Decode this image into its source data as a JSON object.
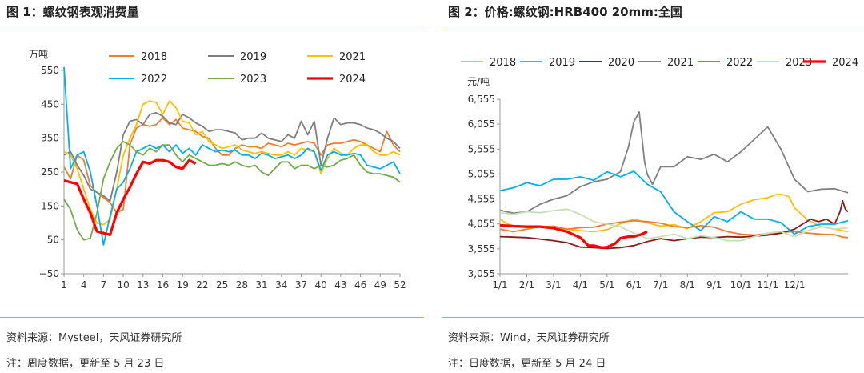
{
  "left": {
    "title": "图 1：螺纹钢表观消费量",
    "source": "资料来源：Mysteel，天风证券研究所",
    "note": "注：周度数据，更新至 5 月 23 日"
  },
  "right": {
    "title": "图 2：价格:螺纹钢:HRB400 20mm:全国",
    "source": "资料来源：Wind，天风证券研究所",
    "note": "注：日度数据，更新至 5 月 24 日"
  },
  "chart_data": [
    {
      "type": "line",
      "unit": "万吨",
      "ylim": [
        -50,
        550
      ],
      "yticks": [
        -50,
        50,
        150,
        250,
        350,
        450,
        550
      ],
      "xlim": [
        1,
        52
      ],
      "xticks": [
        1,
        4,
        7,
        10,
        13,
        16,
        19,
        22,
        25,
        28,
        31,
        34,
        37,
        40,
        43,
        46,
        49,
        52
      ],
      "grid": false,
      "legend": "top",
      "series": [
        {
          "name": "2018",
          "color": "#ed7d31",
          "x": [
            1,
            2,
            3,
            4,
            5,
            6,
            7,
            8,
            9,
            10,
            11,
            12,
            13,
            14,
            15,
            16,
            17,
            18,
            19,
            20,
            21,
            22,
            23,
            24,
            25,
            26,
            27,
            28,
            29,
            30,
            31,
            32,
            33,
            34,
            35,
            36,
            37,
            38,
            39,
            40,
            41,
            42,
            43,
            44,
            45,
            46,
            47,
            48,
            49,
            50,
            51,
            52
          ],
          "values": [
            265,
            230,
            300,
            285,
            210,
            190,
            175,
            160,
            130,
            140,
            330,
            380,
            390,
            385,
            390,
            410,
            390,
            405,
            380,
            375,
            370,
            355,
            350,
            320,
            300,
            300,
            320,
            330,
            325,
            325,
            320,
            335,
            330,
            325,
            335,
            330,
            335,
            340,
            335,
            300,
            330,
            335,
            335,
            340,
            345,
            340,
            330,
            320,
            310,
            370,
            330,
            310
          ]
        },
        {
          "name": "2019",
          "color": "#7f7f7f",
          "x": [
            1,
            2,
            3,
            4,
            5,
            6,
            7,
            8,
            9,
            10,
            11,
            12,
            13,
            14,
            15,
            16,
            17,
            18,
            19,
            20,
            21,
            22,
            23,
            24,
            25,
            26,
            27,
            28,
            29,
            30,
            31,
            32,
            33,
            34,
            35,
            36,
            37,
            38,
            39,
            40,
            41,
            42,
            43,
            44,
            45,
            46,
            47,
            48,
            49,
            50,
            51,
            52
          ],
          "values": [
            300,
            310,
            270,
            240,
            200,
            190,
            180,
            165,
            250,
            360,
            400,
            405,
            390,
            420,
            425,
            415,
            395,
            390,
            420,
            410,
            395,
            385,
            370,
            375,
            375,
            370,
            365,
            345,
            350,
            350,
            365,
            350,
            345,
            340,
            360,
            350,
            400,
            360,
            400,
            270,
            350,
            410,
            390,
            395,
            395,
            390,
            380,
            375,
            365,
            350,
            340,
            320
          ]
        },
        {
          "name": "2021",
          "color": "#ffc000",
          "x": [
            1,
            2,
            3,
            4,
            5,
            6,
            7,
            8,
            9,
            10,
            11,
            12,
            13,
            14,
            15,
            16,
            17,
            18,
            19,
            20,
            21,
            22,
            23,
            24,
            25,
            26,
            27,
            28,
            29,
            30,
            31,
            32,
            33,
            34,
            35,
            36,
            37,
            38,
            39,
            40,
            41,
            42,
            43,
            44,
            45,
            46,
            47,
            48,
            49,
            50,
            51,
            52
          ],
          "values": [
            310,
            300,
            260,
            200,
            140,
            100,
            95,
            110,
            200,
            300,
            350,
            390,
            450,
            460,
            455,
            420,
            460,
            440,
            400,
            395,
            360,
            370,
            340,
            330,
            320,
            325,
            330,
            315,
            310,
            305,
            310,
            305,
            300,
            300,
            310,
            300,
            320,
            315,
            310,
            245,
            290,
            320,
            305,
            300,
            320,
            330,
            330,
            310,
            300,
            300,
            310,
            300
          ]
        },
        {
          "name": "2022",
          "color": "#00b0f0",
          "x": [
            1,
            2,
            3,
            4,
            5,
            6,
            7,
            8,
            9,
            10,
            11,
            12,
            13,
            14,
            15,
            16,
            17,
            18,
            19,
            20,
            21,
            22,
            23,
            24,
            25,
            26,
            27,
            28,
            29,
            30,
            31,
            32,
            33,
            34,
            35,
            36,
            37,
            38,
            39,
            40,
            41,
            42,
            43,
            44,
            45,
            46,
            47,
            48,
            49,
            50,
            51,
            52
          ],
          "values": [
            560,
            260,
            300,
            310,
            250,
            150,
            35,
            120,
            200,
            220,
            260,
            310,
            320,
            330,
            320,
            330,
            310,
            330,
            305,
            320,
            300,
            330,
            320,
            310,
            315,
            310,
            315,
            300,
            300,
            290,
            305,
            300,
            290,
            295,
            300,
            290,
            300,
            320,
            310,
            255,
            300,
            310,
            300,
            300,
            305,
            300,
            270,
            265,
            260,
            270,
            280,
            245
          ]
        },
        {
          "name": "2023",
          "color": "#70ad47",
          "x": [
            1,
            2,
            3,
            4,
            5,
            6,
            7,
            8,
            9,
            10,
            11,
            12,
            13,
            14,
            15,
            16,
            17,
            18,
            19,
            20,
            21,
            22,
            23,
            24,
            25,
            26,
            27,
            28,
            29,
            30,
            31,
            32,
            33,
            34,
            35,
            36,
            37,
            38,
            39,
            40,
            41,
            42,
            43,
            44,
            45,
            46,
            47,
            48,
            49,
            50,
            51,
            52
          ],
          "values": [
            170,
            140,
            80,
            50,
            55,
            130,
            230,
            280,
            320,
            340,
            330,
            310,
            300,
            320,
            310,
            330,
            330,
            300,
            280,
            300,
            290,
            280,
            270,
            270,
            275,
            270,
            280,
            270,
            265,
            270,
            250,
            240,
            260,
            280,
            280,
            260,
            270,
            270,
            260,
            270,
            265,
            270,
            285,
            290,
            300,
            270,
            250,
            245,
            245,
            240,
            235,
            220
          ]
        },
        {
          "name": "2024",
          "color": "#ff0000",
          "x": [
            1,
            2,
            3,
            4,
            5,
            6,
            7,
            8,
            9,
            10,
            11,
            12,
            13,
            14,
            15,
            16,
            17,
            18,
            19,
            20,
            21
          ],
          "values": [
            225,
            220,
            215,
            170,
            130,
            75,
            70,
            65,
            130,
            170,
            205,
            245,
            280,
            275,
            285,
            285,
            280,
            265,
            260,
            285,
            275
          ]
        }
      ]
    },
    {
      "type": "line",
      "unit": "元/吨",
      "ylim": [
        3055,
        6555
      ],
      "yticks": [
        3055,
        3555,
        4055,
        4555,
        5055,
        5555,
        6055,
        6555
      ],
      "xticks": [
        "1/1",
        "2/1",
        "3/1",
        "4/1",
        "5/1",
        "6/1",
        "7/1",
        "8/1",
        "9/1",
        "10/1",
        "11/1",
        "12/1"
      ],
      "grid": false,
      "legend": "top",
      "series": [
        {
          "name": "2018",
          "color": "#ffc000",
          "x": [
            0,
            0.3,
            0.6,
            1,
            1.5,
            2,
            2.5,
            3,
            3.5,
            4,
            4.5,
            5,
            5.5,
            6,
            6.5,
            7,
            7.5,
            8,
            8.5,
            9,
            9.5,
            10,
            10.3,
            10.5,
            10.8,
            11,
            11.5,
            12,
            12.5,
            13
          ],
          "values": [
            4150,
            4050,
            4000,
            3980,
            4010,
            3960,
            3950,
            3920,
            3900,
            3940,
            4060,
            4150,
            4080,
            4010,
            4040,
            3960,
            4100,
            4280,
            4300,
            4450,
            4540,
            4580,
            4640,
            4650,
            4600,
            4380,
            4130,
            4000,
            3950,
            3900
          ]
        },
        {
          "name": "2019",
          "color": "#ed7d31",
          "x": [
            0,
            0.5,
            1,
            1.5,
            2,
            2.5,
            3,
            3.5,
            4,
            4.5,
            5,
            5.5,
            6,
            6.5,
            7,
            7.5,
            8,
            8.5,
            9,
            9.5,
            10,
            10.5,
            11,
            11.5,
            12,
            12.5,
            12.8,
            13
          ],
          "values": [
            3950,
            3900,
            3950,
            4000,
            4010,
            3950,
            3980,
            3990,
            4050,
            4090,
            4120,
            4100,
            4070,
            4000,
            3980,
            4020,
            3990,
            3900,
            3850,
            3830,
            3860,
            3890,
            3900,
            3870,
            3850,
            3840,
            3790,
            3780
          ]
        },
        {
          "name": "2020",
          "color": "#8b1a1a",
          "x": [
            0,
            0.5,
            1,
            1.5,
            2,
            2.5,
            3,
            3.5,
            4,
            4.5,
            5,
            5.5,
            6,
            6.5,
            7,
            7.5,
            8,
            8.5,
            9,
            9.5,
            10,
            10.5,
            11,
            11.3,
            11.6,
            11.9,
            12.2,
            12.5,
            12.7,
            12.8,
            12.9,
            13
          ],
          "values": [
            3800,
            3790,
            3780,
            3750,
            3720,
            3680,
            3590,
            3580,
            3560,
            3580,
            3620,
            3700,
            3760,
            3720,
            3760,
            3790,
            3780,
            3800,
            3790,
            3810,
            3830,
            3870,
            3950,
            4050,
            4150,
            4100,
            4150,
            4050,
            4300,
            4520,
            4350,
            4300
          ]
        },
        {
          "name": "2021",
          "color": "#808080",
          "x": [
            0,
            0.5,
            1,
            1.5,
            2,
            2.5,
            3,
            3.5,
            4,
            4.5,
            4.8,
            5,
            5.2,
            5.4,
            5.5,
            5.7,
            6,
            6.5,
            7,
            7.5,
            8,
            8.5,
            9,
            9.5,
            10,
            10.5,
            11,
            11.5,
            12,
            12.5,
            13
          ],
          "values": [
            4330,
            4270,
            4300,
            4450,
            4550,
            4620,
            4800,
            4900,
            4950,
            5100,
            5600,
            6100,
            6300,
            5300,
            5050,
            4850,
            5200,
            5200,
            5400,
            5350,
            5450,
            5300,
            5500,
            5750,
            6000,
            5550,
            4950,
            4700,
            4750,
            4760,
            4680
          ]
        },
        {
          "name": "2022",
          "color": "#00b0f0",
          "x": [
            0,
            0.5,
            1,
            1.5,
            2,
            2.5,
            3,
            3.5,
            4,
            4.5,
            5,
            5.5,
            6,
            6.5,
            7,
            7.5,
            8,
            8.5,
            9,
            9.5,
            10,
            10.5,
            11,
            11.5,
            12,
            12.5,
            13
          ],
          "values": [
            4720,
            4780,
            4880,
            4820,
            4950,
            4950,
            5000,
            4930,
            5100,
            5000,
            5110,
            4850,
            4700,
            4300,
            4100,
            3920,
            4200,
            4100,
            4300,
            4150,
            4150,
            4080,
            3850,
            4000,
            4050,
            4050,
            4120
          ]
        },
        {
          "name": "2023",
          "color": "#c6e0b4",
          "x": [
            0,
            0.5,
            1,
            1.5,
            2,
            2.5,
            3,
            3.5,
            4,
            4.5,
            5,
            5.5,
            6,
            6.5,
            7,
            7.5,
            8,
            8.5,
            9,
            9.5,
            10,
            10.5,
            11,
            11.5,
            12,
            12.5,
            13
          ],
          "values": [
            4280,
            4250,
            4300,
            4280,
            4320,
            4350,
            4250,
            4100,
            4050,
            4000,
            3870,
            3760,
            3800,
            3850,
            3760,
            3820,
            3780,
            3720,
            3720,
            3800,
            3870,
            3900,
            3800,
            3920,
            4000,
            3950,
            3980
          ]
        },
        {
          "name": "2024",
          "color": "#ff0000",
          "x": [
            0,
            0.5,
            1,
            1.5,
            2,
            2.5,
            3,
            3.3,
            3.5,
            3.8,
            4,
            4.3,
            4.5,
            4.8,
            5,
            5.3,
            5.5
          ],
          "values": [
            4030,
            4010,
            4000,
            4000,
            3970,
            3900,
            3780,
            3620,
            3620,
            3580,
            3590,
            3660,
            3770,
            3800,
            3800,
            3850,
            3900
          ]
        }
      ]
    }
  ]
}
